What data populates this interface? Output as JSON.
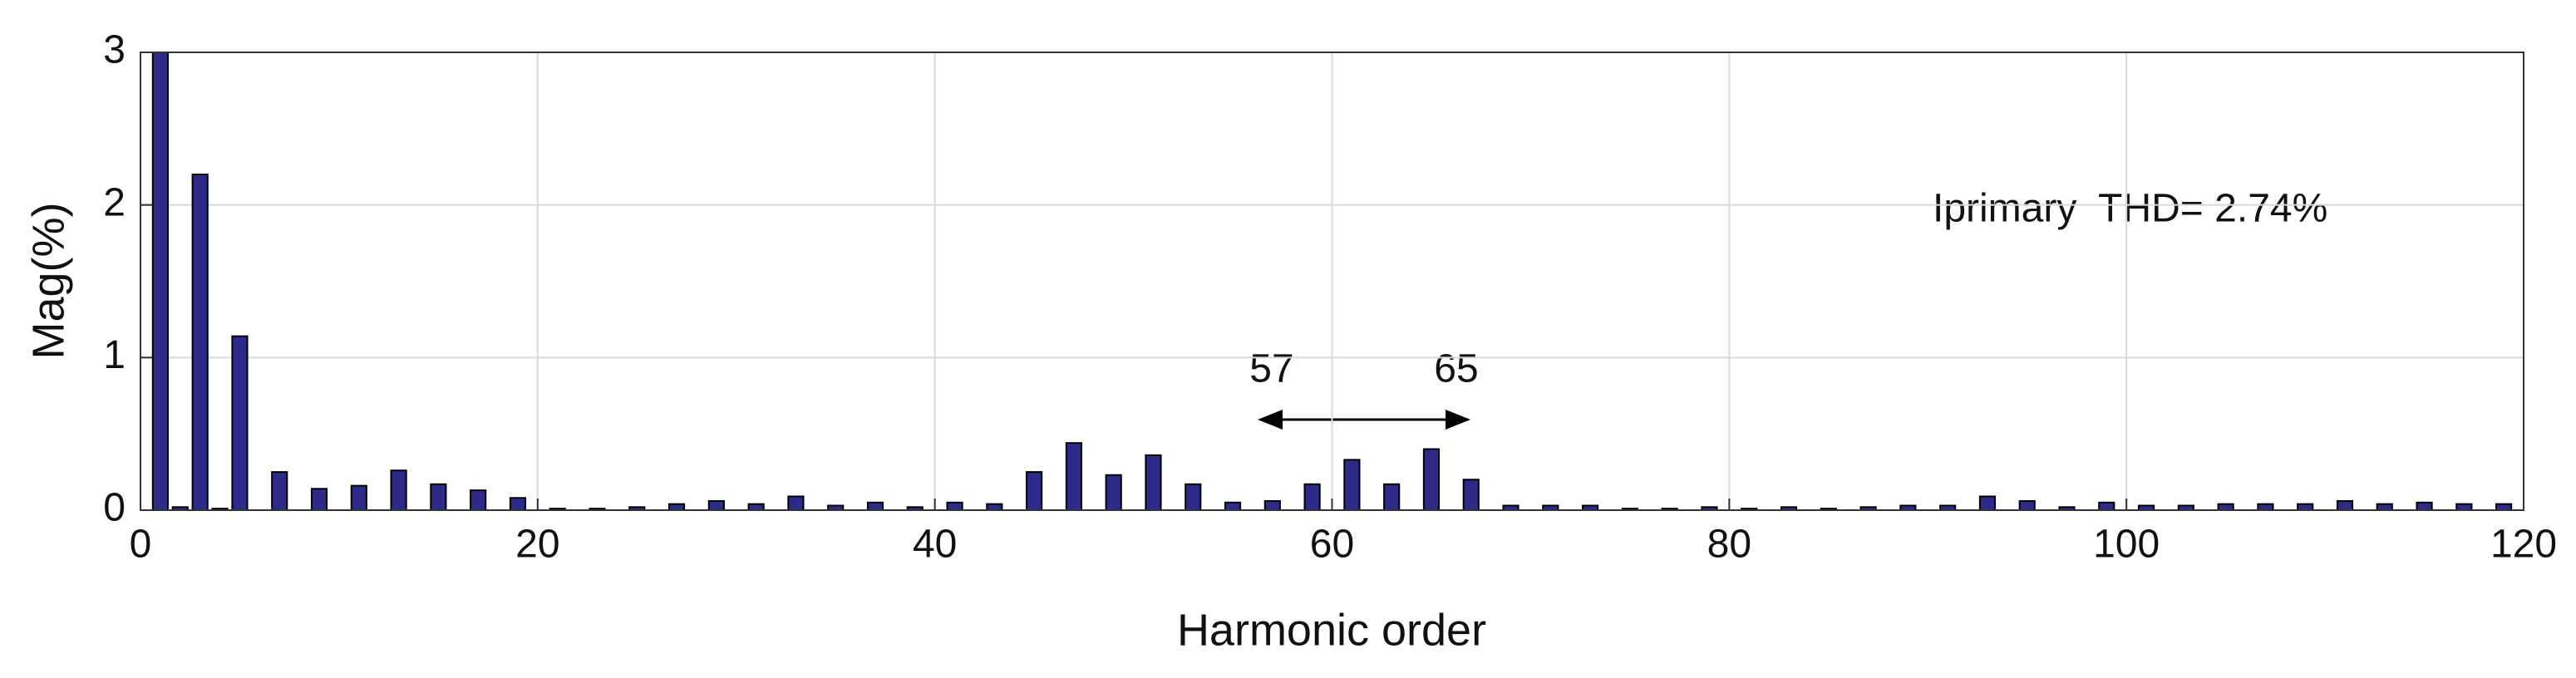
{
  "chart_data": {
    "type": "bar",
    "x": [
      1,
      2,
      3,
      4,
      5,
      7,
      9,
      11,
      13,
      15,
      17,
      19,
      21,
      23,
      25,
      27,
      29,
      31,
      33,
      35,
      37,
      39,
      41,
      43,
      45,
      47,
      49,
      51,
      53,
      55,
      57,
      59,
      61,
      63,
      65,
      67,
      69,
      71,
      73,
      75,
      77,
      79,
      81,
      83,
      85,
      87,
      89,
      91,
      93,
      95,
      97,
      99,
      101,
      103,
      105,
      107,
      109,
      111,
      113,
      115,
      117,
      119
    ],
    "values": [
      3,
      0.02,
      2.2,
      0.01,
      1.14,
      0.25,
      0.14,
      0.16,
      0.26,
      0.17,
      0.13,
      0.08,
      0.01,
      0.01,
      0.02,
      0.04,
      0.06,
      0.04,
      0.09,
      0.03,
      0.05,
      0.02,
      0.05,
      0.04,
      0.25,
      0.44,
      0.23,
      0.36,
      0.17,
      0.05,
      0.06,
      0.17,
      0.33,
      0.17,
      0.4,
      0.2,
      0.03,
      0.03,
      0.03,
      0.01,
      0.01,
      0.02,
      0.01,
      0.02,
      0.01,
      0.02,
      0.03,
      0.03,
      0.09,
      0.06,
      0.02,
      0.05,
      0.03,
      0.03,
      0.04,
      0.04,
      0.04,
      0.06,
      0.04,
      0.05,
      0.04,
      0.04
    ],
    "color": "#2e2a8a",
    "xlabel": "Harmonic order",
    "ylabel": "Mag(%)",
    "xlim": [
      0,
      120
    ],
    "xticks": [
      0,
      20,
      40,
      60,
      80,
      100,
      120
    ],
    "ylim": [
      0,
      3
    ],
    "yticks": [
      0,
      1,
      2,
      3
    ],
    "grid": true,
    "annotations": [
      "Iprimary  THD= 2.74%",
      "57",
      "65"
    ]
  }
}
